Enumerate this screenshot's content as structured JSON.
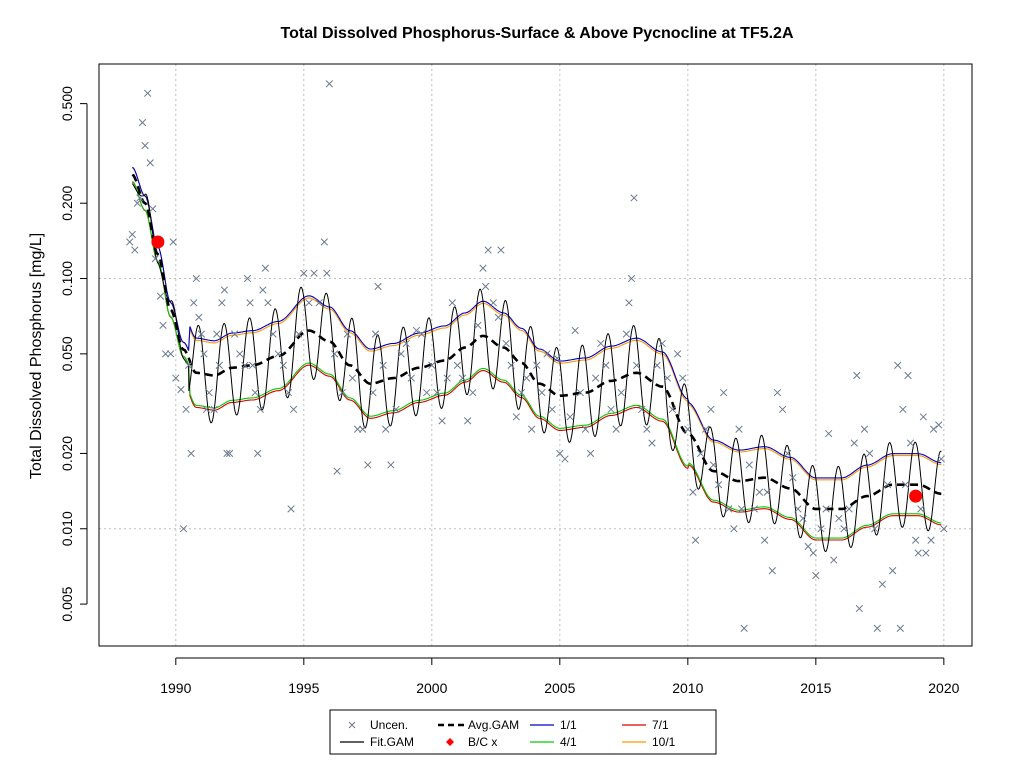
{
  "chart_data": {
    "type": "scatter",
    "title": "Total Dissolved Phosphorus-Surface & Above Pycnocline at TF5.2A",
    "xlabel": "",
    "ylabel": "Total Dissolved Phosphorus [mg/L]",
    "y_scale": "log",
    "xlim": [
      1987.0,
      2021.1
    ],
    "ylim": [
      0.0034,
      0.72
    ],
    "x_ticks": [
      1990,
      1995,
      2000,
      2005,
      2010,
      2015,
      2020
    ],
    "y_ticks": [
      0.005,
      0.01,
      0.02,
      0.05,
      0.1,
      0.2,
      0.5
    ],
    "y_tick_labels": [
      "0.005",
      "0.010",
      "0.020",
      "0.050",
      "0.100",
      "0.200",
      "0.500"
    ],
    "grid": true,
    "legend_position": "bottom",
    "colors": {
      "uncensored": "#6b7a8f",
      "fit_gam": "#000000",
      "avg_gam": "#000000",
      "bc": "#ff0000",
      "jan1": "#0000cd",
      "apr1": "#00cc00",
      "jul1": "#dd0000",
      "oct1": "#ff9900",
      "grid": "#bebebe"
    },
    "legend": [
      {
        "label": "Uncen.",
        "symbol": "x",
        "color": "#6b7a8f"
      },
      {
        "label": "Fit.GAM",
        "symbol": "line",
        "color": "#000000"
      },
      {
        "label": "Avg.GAM",
        "symbol": "dash",
        "color": "#000000"
      },
      {
        "label": "B/C x",
        "symbol": "dot",
        "color": "#ff0000"
      },
      {
        "label": "1/1",
        "symbol": "line",
        "color": "#0000cd"
      },
      {
        "label": "4/1",
        "symbol": "line",
        "color": "#00cc00"
      },
      {
        "label": "7/1",
        "symbol": "line",
        "color": "#dd0000"
      },
      {
        "label": "10/1",
        "symbol": "line",
        "color": "#ff9900"
      }
    ],
    "avg_gam_knots": [
      [
        1988.3,
        0.26
      ],
      [
        1988.8,
        0.2
      ],
      [
        1989.3,
        0.125
      ],
      [
        1989.8,
        0.075
      ],
      [
        1990.3,
        0.052
      ],
      [
        1990.8,
        0.042
      ],
      [
        1991.5,
        0.041
      ],
      [
        1992.2,
        0.044
      ],
      [
        1993.0,
        0.045
      ],
      [
        1994.0,
        0.049
      ],
      [
        1995.2,
        0.062
      ],
      [
        1996.0,
        0.056
      ],
      [
        1996.8,
        0.045
      ],
      [
        1997.6,
        0.038
      ],
      [
        1998.5,
        0.04
      ],
      [
        1999.5,
        0.044
      ],
      [
        2000.5,
        0.047
      ],
      [
        2001.3,
        0.053
      ],
      [
        2002.0,
        0.059
      ],
      [
        2002.8,
        0.053
      ],
      [
        2003.5,
        0.046
      ],
      [
        2004.2,
        0.038
      ],
      [
        2005.0,
        0.034
      ],
      [
        2006.0,
        0.035
      ],
      [
        2007.0,
        0.039
      ],
      [
        2008.0,
        0.042
      ],
      [
        2009.0,
        0.037
      ],
      [
        2010.0,
        0.024
      ],
      [
        2011.0,
        0.017
      ],
      [
        2012.0,
        0.0155
      ],
      [
        2013.0,
        0.016
      ],
      [
        2014.0,
        0.0145
      ],
      [
        2015.0,
        0.012
      ],
      [
        2016.0,
        0.012
      ],
      [
        2017.0,
        0.0135
      ],
      [
        2018.0,
        0.015
      ],
      [
        2019.0,
        0.015
      ],
      [
        2019.9,
        0.0138
      ]
    ],
    "bc_points": [
      {
        "x": 1989.3,
        "y": 0.14
      },
      {
        "x": 2018.9,
        "y": 0.0135
      }
    ],
    "uncensored_points": [
      [
        1988.2,
        0.14
      ],
      [
        1988.3,
        0.15
      ],
      [
        1988.4,
        0.13
      ],
      [
        1988.5,
        0.2
      ],
      [
        1988.6,
        0.21
      ],
      [
        1988.7,
        0.42
      ],
      [
        1988.8,
        0.34
      ],
      [
        1988.9,
        0.55
      ],
      [
        1989.0,
        0.29
      ],
      [
        1989.1,
        0.19
      ],
      [
        1989.2,
        0.12
      ],
      [
        1989.4,
        0.085
      ],
      [
        1989.5,
        0.065
      ],
      [
        1989.6,
        0.05
      ],
      [
        1989.8,
        0.05
      ],
      [
        1989.9,
        0.14
      ],
      [
        1990.0,
        0.04
      ],
      [
        1990.2,
        0.036
      ],
      [
        1990.3,
        0.01
      ],
      [
        1990.4,
        0.03
      ],
      [
        1990.5,
        0.045
      ],
      [
        1990.6,
        0.02
      ],
      [
        1990.7,
        0.08
      ],
      [
        1990.8,
        0.1
      ],
      [
        1990.9,
        0.07
      ],
      [
        1991.0,
        0.06
      ],
      [
        1991.1,
        0.05
      ],
      [
        1991.2,
        0.03
      ],
      [
        1991.3,
        0.035
      ],
      [
        1991.5,
        0.03
      ],
      [
        1991.6,
        0.06
      ],
      [
        1991.7,
        0.045
      ],
      [
        1991.8,
        0.08
      ],
      [
        1991.9,
        0.09
      ],
      [
        1992.0,
        0.02
      ],
      [
        1992.1,
        0.02
      ],
      [
        1992.3,
        0.06
      ],
      [
        1992.5,
        0.05
      ],
      [
        1992.7,
        0.045
      ],
      [
        1992.8,
        0.1
      ],
      [
        1992.9,
        0.08
      ],
      [
        1993.0,
        0.045
      ],
      [
        1993.1,
        0.035
      ],
      [
        1993.2,
        0.02
      ],
      [
        1993.3,
        0.03
      ],
      [
        1993.4,
        0.09
      ],
      [
        1993.5,
        0.11
      ],
      [
        1993.6,
        0.08
      ],
      [
        1993.8,
        0.06
      ],
      [
        1994.0,
        0.05
      ],
      [
        1994.2,
        0.045
      ],
      [
        1994.4,
        0.035
      ],
      [
        1994.5,
        0.012
      ],
      [
        1994.6,
        0.03
      ],
      [
        1994.8,
        0.06
      ],
      [
        1995.0,
        0.105
      ],
      [
        1995.2,
        0.08
      ],
      [
        1995.4,
        0.105
      ],
      [
        1995.6,
        0.08
      ],
      [
        1995.8,
        0.14
      ],
      [
        1995.9,
        0.105
      ],
      [
        1996.0,
        0.6
      ],
      [
        1996.2,
        0.05
      ],
      [
        1996.3,
        0.017
      ],
      [
        1996.5,
        0.035
      ],
      [
        1996.7,
        0.06
      ],
      [
        1996.9,
        0.04
      ],
      [
        1997.1,
        0.025
      ],
      [
        1997.3,
        0.025
      ],
      [
        1997.5,
        0.018
      ],
      [
        1997.7,
        0.035
      ],
      [
        1997.8,
        0.06
      ],
      [
        1997.9,
        0.093
      ],
      [
        1998.1,
        0.045
      ],
      [
        1998.2,
        0.025
      ],
      [
        1998.4,
        0.018
      ],
      [
        1998.6,
        0.03
      ],
      [
        1998.8,
        0.05
      ],
      [
        1999.0,
        0.055
      ],
      [
        1999.2,
        0.04
      ],
      [
        1999.4,
        0.062
      ],
      [
        1999.6,
        0.06
      ],
      [
        1999.8,
        0.035
      ],
      [
        2000.0,
        0.045
      ],
      [
        2000.2,
        0.035
      ],
      [
        2000.4,
        0.027
      ],
      [
        2000.6,
        0.04
      ],
      [
        2000.8,
        0.08
      ],
      [
        2001.0,
        0.045
      ],
      [
        2001.2,
        0.04
      ],
      [
        2001.4,
        0.027
      ],
      [
        2001.6,
        0.035
      ],
      [
        2001.8,
        0.065
      ],
      [
        2002.0,
        0.11
      ],
      [
        2002.1,
        0.093
      ],
      [
        2002.2,
        0.13
      ],
      [
        2002.4,
        0.08
      ],
      [
        2002.6,
        0.07
      ],
      [
        2002.7,
        0.13
      ],
      [
        2002.9,
        0.055
      ],
      [
        2003.1,
        0.045
      ],
      [
        2003.3,
        0.028
      ],
      [
        2003.5,
        0.035
      ],
      [
        2003.7,
        0.04
      ],
      [
        2003.9,
        0.025
      ],
      [
        2004.1,
        0.045
      ],
      [
        2004.3,
        0.035
      ],
      [
        2004.5,
        0.05
      ],
      [
        2004.7,
        0.03
      ],
      [
        2004.9,
        0.048
      ],
      [
        2005.0,
        0.02
      ],
      [
        2005.2,
        0.019
      ],
      [
        2005.4,
        0.028
      ],
      [
        2005.6,
        0.062
      ],
      [
        2005.8,
        0.035
      ],
      [
        2006.0,
        0.025
      ],
      [
        2006.2,
        0.02
      ],
      [
        2006.4,
        0.04
      ],
      [
        2006.6,
        0.055
      ],
      [
        2006.8,
        0.045
      ],
      [
        2007.0,
        0.03
      ],
      [
        2007.2,
        0.025
      ],
      [
        2007.4,
        0.035
      ],
      [
        2007.6,
        0.06
      ],
      [
        2007.7,
        0.08
      ],
      [
        2007.8,
        0.1
      ],
      [
        2007.9,
        0.21
      ],
      [
        2008.0,
        0.045
      ],
      [
        2008.2,
        0.03
      ],
      [
        2008.4,
        0.025
      ],
      [
        2008.6,
        0.022
      ],
      [
        2008.8,
        0.045
      ],
      [
        2009.0,
        0.055
      ],
      [
        2009.2,
        0.04
      ],
      [
        2009.4,
        0.03
      ],
      [
        2009.6,
        0.05
      ],
      [
        2009.8,
        0.04
      ],
      [
        2010.0,
        0.025
      ],
      [
        2010.2,
        0.014
      ],
      [
        2010.3,
        0.009
      ],
      [
        2010.5,
        0.02
      ],
      [
        2010.7,
        0.025
      ],
      [
        2010.9,
        0.03
      ],
      [
        2011.0,
        0.018
      ],
      [
        2011.2,
        0.015
      ],
      [
        2011.4,
        0.035
      ],
      [
        2011.6,
        0.012
      ],
      [
        2011.8,
        0.01
      ],
      [
        2012.0,
        0.025
      ],
      [
        2012.1,
        0.012
      ],
      [
        2012.2,
        0.004
      ],
      [
        2012.4,
        0.018
      ],
      [
        2012.6,
        0.012
      ],
      [
        2012.8,
        0.014
      ],
      [
        2013.0,
        0.009
      ],
      [
        2013.1,
        0.014
      ],
      [
        2013.3,
        0.0068
      ],
      [
        2013.5,
        0.035
      ],
      [
        2013.7,
        0.03
      ],
      [
        2013.9,
        0.02
      ],
      [
        2014.1,
        0.016
      ],
      [
        2014.3,
        0.012
      ],
      [
        2014.5,
        0.011
      ],
      [
        2014.7,
        0.0085
      ],
      [
        2014.9,
        0.008
      ],
      [
        2015.0,
        0.0065
      ],
      [
        2015.2,
        0.01
      ],
      [
        2015.4,
        0.012
      ],
      [
        2015.5,
        0.024
      ],
      [
        2015.7,
        0.0075
      ],
      [
        2015.9,
        0.011
      ],
      [
        2016.1,
        0.01
      ],
      [
        2016.3,
        0.012
      ],
      [
        2016.5,
        0.022
      ],
      [
        2016.6,
        0.041
      ],
      [
        2016.7,
        0.0048
      ],
      [
        2016.9,
        0.025
      ],
      [
        2017.1,
        0.02
      ],
      [
        2017.3,
        0.01
      ],
      [
        2017.4,
        0.004
      ],
      [
        2017.6,
        0.006
      ],
      [
        2017.8,
        0.015
      ],
      [
        2018.0,
        0.0068
      ],
      [
        2018.2,
        0.045
      ],
      [
        2018.3,
        0.004
      ],
      [
        2018.4,
        0.03
      ],
      [
        2018.5,
        0.015
      ],
      [
        2018.6,
        0.041
      ],
      [
        2018.7,
        0.022
      ],
      [
        2018.9,
        0.009
      ],
      [
        2019.0,
        0.008
      ],
      [
        2019.1,
        0.012
      ],
      [
        2019.2,
        0.028
      ],
      [
        2019.3,
        0.008
      ],
      [
        2019.5,
        0.009
      ],
      [
        2019.6,
        0.025
      ],
      [
        2019.8,
        0.026
      ],
      [
        2019.9,
        0.019
      ],
      [
        2020.0,
        0.01
      ]
    ]
  }
}
